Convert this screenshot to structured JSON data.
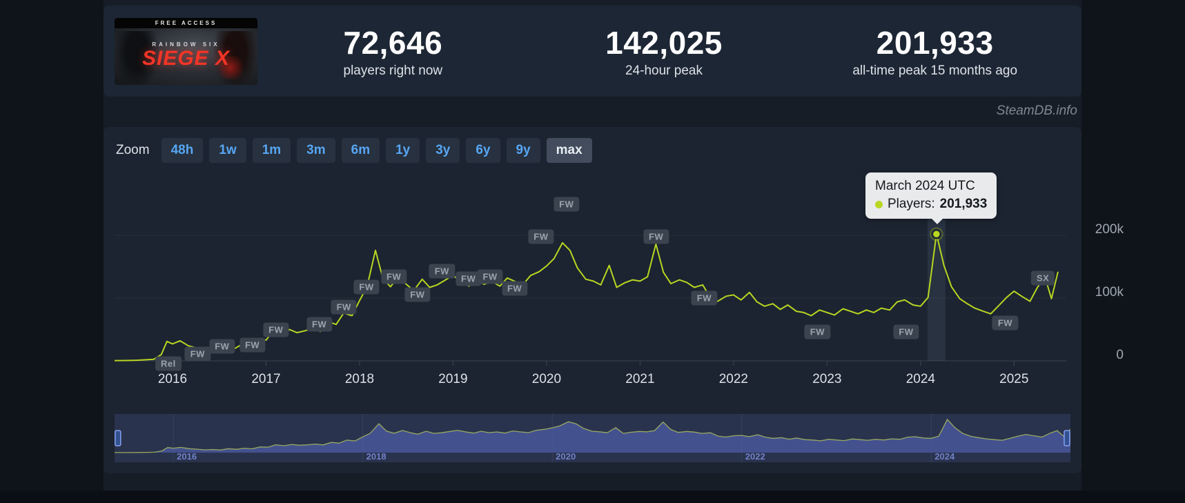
{
  "header": {
    "banner": {
      "free_access": "FREE ACCESS",
      "brand": "RAINBOW SIX",
      "logo": "SIEGE X"
    },
    "stats": [
      {
        "value": "72,646",
        "label": "players right now"
      },
      {
        "value": "142,025",
        "label": "24-hour peak"
      },
      {
        "value": "201,933",
        "label": "all-time peak 15 months ago"
      }
    ]
  },
  "watermark": "SteamDB.info",
  "toolbar": {
    "zoom_label": "Zoom",
    "ranges": [
      "48h",
      "1w",
      "1m",
      "3m",
      "6m",
      "1y",
      "3y",
      "6y",
      "9y",
      "max"
    ],
    "active": "max"
  },
  "tooltip": {
    "title": "March 2024 UTC",
    "series_label": "Players:",
    "value": "201,933"
  },
  "chart_data": {
    "type": "line",
    "x_range": [
      2015.38,
      2025.47
    ],
    "y_range": [
      0,
      300
    ],
    "y_unit": "thousands of concurrent players",
    "x_ticks": [
      2016,
      2017,
      2018,
      2019,
      2020,
      2021,
      2022,
      2023,
      2024,
      2025
    ],
    "y_ticks": [
      {
        "v": 0,
        "label": "0"
      },
      {
        "v": 100,
        "label": "100k"
      },
      {
        "v": 200,
        "label": "200k"
      }
    ],
    "selected_point": {
      "x": 2024.17,
      "value": 201.933,
      "display": "201,933",
      "label": "March 2024 UTC"
    },
    "series": [
      {
        "name": "Players",
        "color": "#b9d621",
        "points": [
          [
            2015.38,
            0.4
          ],
          [
            2015.5,
            0.6
          ],
          [
            2015.62,
            1
          ],
          [
            2015.72,
            1.8
          ],
          [
            2015.8,
            2.5
          ],
          [
            2015.88,
            10
          ],
          [
            2015.94,
            31
          ],
          [
            2016.0,
            27
          ],
          [
            2016.08,
            32
          ],
          [
            2016.17,
            24
          ],
          [
            2016.25,
            21
          ],
          [
            2016.33,
            17
          ],
          [
            2016.42,
            19
          ],
          [
            2016.5,
            16
          ],
          [
            2016.58,
            24
          ],
          [
            2016.67,
            20
          ],
          [
            2016.75,
            27
          ],
          [
            2016.83,
            23
          ],
          [
            2016.92,
            35
          ],
          [
            2017.0,
            33
          ],
          [
            2017.08,
            48
          ],
          [
            2017.17,
            42
          ],
          [
            2017.25,
            50
          ],
          [
            2017.33,
            45
          ],
          [
            2017.42,
            48
          ],
          [
            2017.5,
            52
          ],
          [
            2017.58,
            47
          ],
          [
            2017.67,
            62
          ],
          [
            2017.75,
            58
          ],
          [
            2017.83,
            76
          ],
          [
            2017.92,
            72
          ],
          [
            2018.0,
            96
          ],
          [
            2018.08,
            118
          ],
          [
            2018.17,
            176
          ],
          [
            2018.25,
            131
          ],
          [
            2018.33,
            118
          ],
          [
            2018.42,
            135
          ],
          [
            2018.5,
            122
          ],
          [
            2018.58,
            112
          ],
          [
            2018.67,
            130
          ],
          [
            2018.75,
            117
          ],
          [
            2018.83,
            121
          ],
          [
            2018.92,
            129
          ],
          [
            2019.0,
            136
          ],
          [
            2019.08,
            127
          ],
          [
            2019.17,
            119
          ],
          [
            2019.25,
            130
          ],
          [
            2019.33,
            122
          ],
          [
            2019.42,
            126
          ],
          [
            2019.5,
            119
          ],
          [
            2019.58,
            132
          ],
          [
            2019.67,
            126
          ],
          [
            2019.75,
            122
          ],
          [
            2019.83,
            136
          ],
          [
            2019.92,
            142
          ],
          [
            2020.0,
            151
          ],
          [
            2020.08,
            163
          ],
          [
            2020.17,
            188
          ],
          [
            2020.25,
            176
          ],
          [
            2020.33,
            148
          ],
          [
            2020.42,
            130
          ],
          [
            2020.5,
            127
          ],
          [
            2020.58,
            121
          ],
          [
            2020.67,
            152
          ],
          [
            2020.75,
            117
          ],
          [
            2020.83,
            124
          ],
          [
            2020.92,
            129
          ],
          [
            2021.0,
            127
          ],
          [
            2021.08,
            134
          ],
          [
            2021.17,
            186
          ],
          [
            2021.25,
            141
          ],
          [
            2021.33,
            123
          ],
          [
            2021.42,
            129
          ],
          [
            2021.5,
            125
          ],
          [
            2021.58,
            117
          ],
          [
            2021.67,
            121
          ],
          [
            2021.75,
            101
          ],
          [
            2021.83,
            95
          ],
          [
            2021.92,
            103
          ],
          [
            2022.0,
            105
          ],
          [
            2022.08,
            97
          ],
          [
            2022.17,
            109
          ],
          [
            2022.25,
            94
          ],
          [
            2022.33,
            87
          ],
          [
            2022.42,
            91
          ],
          [
            2022.5,
            82
          ],
          [
            2022.58,
            89
          ],
          [
            2022.67,
            79
          ],
          [
            2022.75,
            77
          ],
          [
            2022.83,
            72
          ],
          [
            2022.92,
            81
          ],
          [
            2023.0,
            77
          ],
          [
            2023.08,
            73
          ],
          [
            2023.17,
            83
          ],
          [
            2023.25,
            79
          ],
          [
            2023.33,
            75
          ],
          [
            2023.42,
            81
          ],
          [
            2023.5,
            77
          ],
          [
            2023.58,
            84
          ],
          [
            2023.67,
            81
          ],
          [
            2023.75,
            94
          ],
          [
            2023.83,
            97
          ],
          [
            2023.92,
            89
          ],
          [
            2024.0,
            87
          ],
          [
            2024.08,
            101
          ],
          [
            2024.17,
            201.933
          ],
          [
            2024.25,
            152
          ],
          [
            2024.33,
            118
          ],
          [
            2024.42,
            99
          ],
          [
            2024.5,
            91
          ],
          [
            2024.58,
            84
          ],
          [
            2024.67,
            79
          ],
          [
            2024.75,
            75
          ],
          [
            2024.83,
            87
          ],
          [
            2024.92,
            101
          ],
          [
            2025.0,
            111
          ],
          [
            2025.08,
            103
          ],
          [
            2025.17,
            95
          ],
          [
            2025.25,
            117
          ],
          [
            2025.33,
            134
          ],
          [
            2025.4,
            99
          ],
          [
            2025.47,
            142
          ]
        ]
      }
    ],
    "annotations": [
      {
        "fx": 0.057,
        "py": 277,
        "label": "Rel"
      },
      {
        "fx": 0.088,
        "py": 263,
        "label": "FW"
      },
      {
        "fx": 0.114,
        "py": 252,
        "label": "FW"
      },
      {
        "fx": 0.146,
        "py": 250,
        "label": "FW"
      },
      {
        "fx": 0.171,
        "py": 228,
        "label": "FW"
      },
      {
        "fx": 0.217,
        "py": 220,
        "label": "FW"
      },
      {
        "fx": 0.243,
        "py": 195,
        "label": "FW"
      },
      {
        "fx": 0.267,
        "py": 166,
        "label": "FW"
      },
      {
        "fx": 0.296,
        "py": 151,
        "label": "FW"
      },
      {
        "fx": 0.321,
        "py": 177,
        "label": "FW"
      },
      {
        "fx": 0.347,
        "py": 143,
        "label": "FW"
      },
      {
        "fx": 0.375,
        "py": 154,
        "label": "FW"
      },
      {
        "fx": 0.398,
        "py": 151,
        "label": "FW"
      },
      {
        "fx": 0.424,
        "py": 168,
        "label": "FW"
      },
      {
        "fx": 0.452,
        "py": 93,
        "label": "FW"
      },
      {
        "fx": 0.479,
        "py": 46,
        "label": "FW"
      },
      {
        "fx": 0.574,
        "py": 93,
        "label": "FW"
      },
      {
        "fx": 0.625,
        "py": 182,
        "label": "FW"
      },
      {
        "fx": 0.745,
        "py": 231,
        "label": "FW"
      },
      {
        "fx": 0.839,
        "py": 231,
        "label": "FW"
      },
      {
        "fx": 0.944,
        "py": 218,
        "label": "FW"
      },
      {
        "fx": 0.984,
        "py": 153,
        "label": "SX"
      }
    ]
  },
  "navigator": {
    "years": [
      2016,
      2018,
      2020,
      2022,
      2024
    ]
  }
}
